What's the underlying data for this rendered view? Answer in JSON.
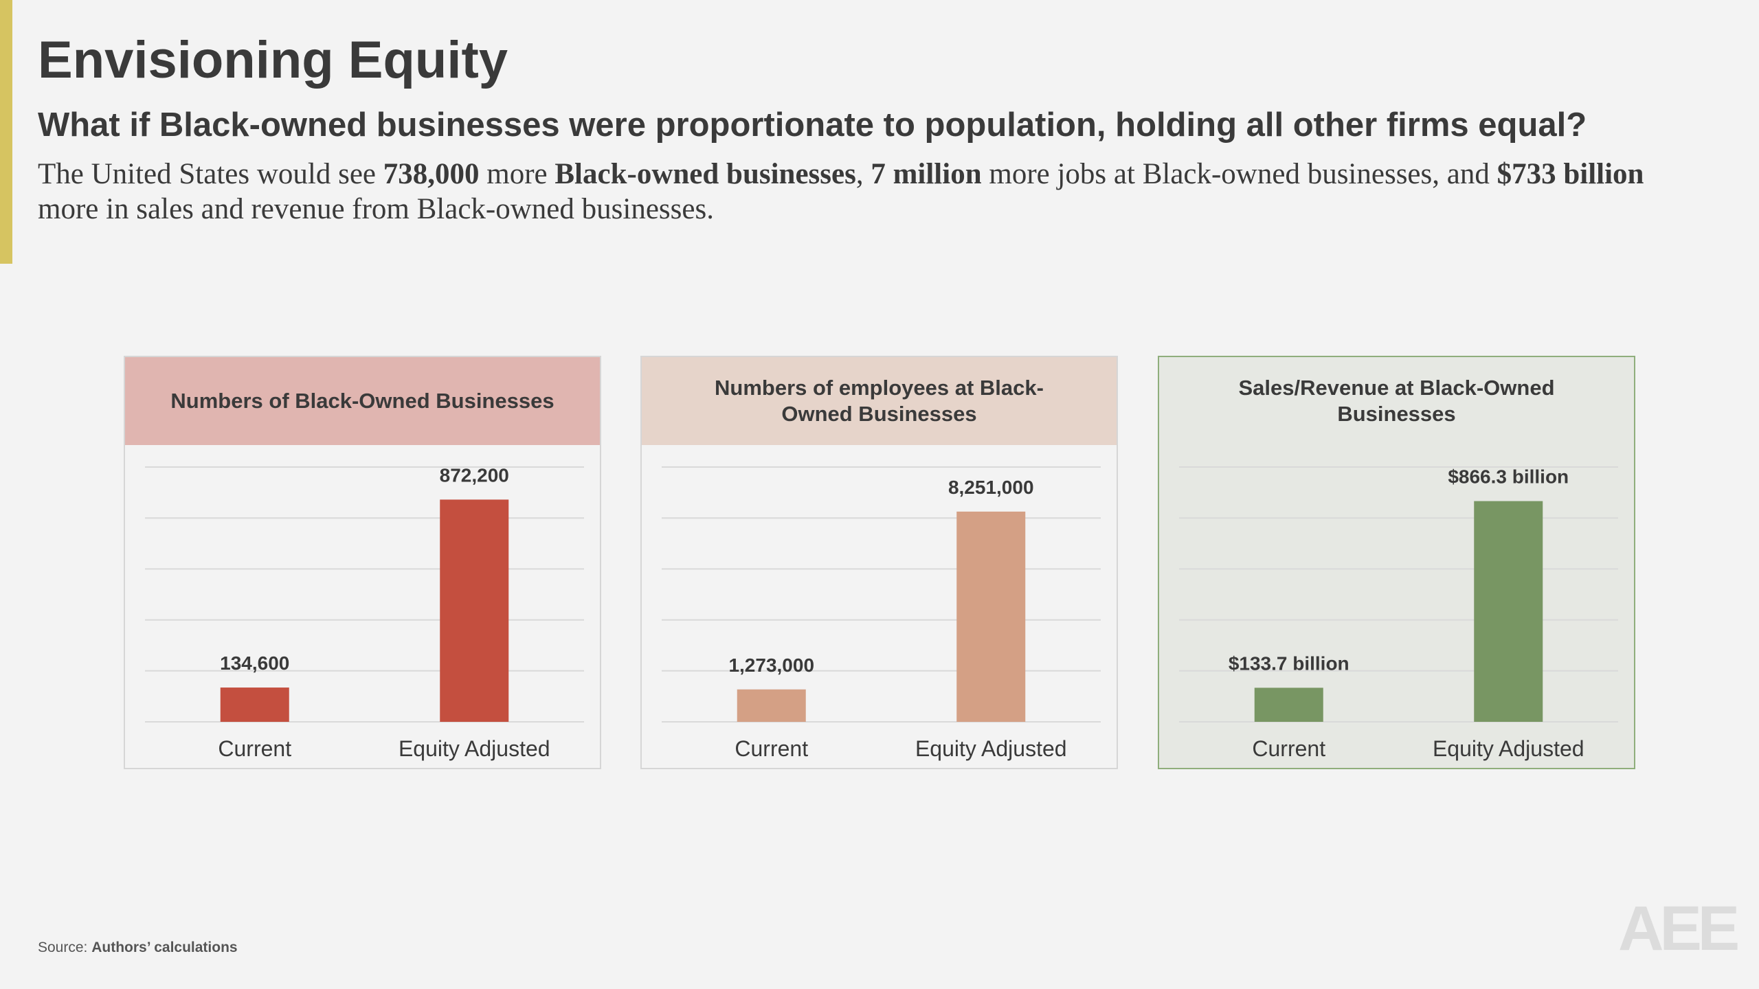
{
  "header": {
    "title": "Envisioning Equity",
    "subtitle": "What if Black-owned businesses were proportionate to population, holding all other firms equal?",
    "body": [
      {
        "text": "The United States would see ",
        "bold": false
      },
      {
        "text": "738,000",
        "bold": true
      },
      {
        "text": " more ",
        "bold": false
      },
      {
        "text": "Black-owned businesses",
        "bold": true
      },
      {
        "text": ", ",
        "bold": false
      },
      {
        "text": "7 million",
        "bold": true
      },
      {
        "text": " more jobs at Black-owned businesses, and ",
        "bold": false
      },
      {
        "text": "$733 billion",
        "bold": true
      },
      {
        "text": " more in sales and revenue from Black-owned businesses.",
        "bold": false
      }
    ]
  },
  "chart_data": [
    {
      "type": "bar",
      "title": "Numbers of Black-Owned Businesses",
      "categories": [
        "Current",
        "Equity Adjusted"
      ],
      "values": [
        134600,
        872200
      ],
      "value_labels": [
        "134,600",
        "872,200"
      ],
      "color": "#c44f3f",
      "header_color": "#e0b5b0",
      "background": "#f3f3f3",
      "border": "#d6d6d6",
      "ylim": [
        0,
        1000000
      ],
      "yticks": [
        0,
        200000,
        400000,
        600000,
        800000,
        1000000
      ],
      "grid": true
    },
    {
      "type": "bar",
      "title": "Numbers of employees at Black-Owned Businesses",
      "categories": [
        "Current",
        "Equity Adjusted"
      ],
      "values": [
        1273000,
        8251000
      ],
      "value_labels": [
        "1,273,000",
        "8,251,000"
      ],
      "color": "#d4a085",
      "header_color": "#e6d4ca",
      "background": "#f3f3f3",
      "border": "#d6d6d6",
      "ylim": [
        0,
        10000000
      ],
      "yticks": [
        0,
        2000000,
        4000000,
        6000000,
        8000000,
        10000000
      ],
      "grid": true
    },
    {
      "type": "bar",
      "title": "Sales/Revenue at Black-Owned Businesses",
      "categories": [
        "Current",
        "Equity Adjusted"
      ],
      "values": [
        133.7,
        866.3
      ],
      "value_labels": [
        "$133.7 billion",
        "$866.3 billion"
      ],
      "color": "#789663",
      "header_color": "#e6e8e3",
      "background": "#e6e8e3",
      "border": "#8fae7c",
      "ylim": [
        0,
        1000
      ],
      "yticks": [
        0,
        200,
        400,
        600,
        800,
        1000
      ],
      "grid": true
    }
  ],
  "footer": {
    "source_label": "Source:",
    "source": "Authors’ calculations",
    "logo": "AEE"
  }
}
